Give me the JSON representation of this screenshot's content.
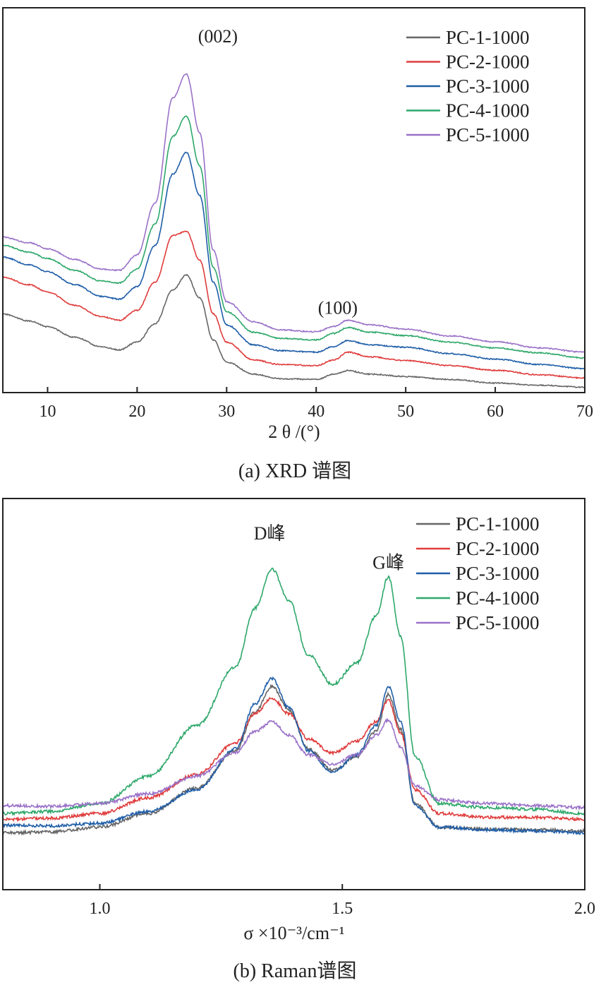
{
  "chart_data": [
    {
      "type": "line",
      "xlabel": "2 θ /(°)",
      "caption": "(a) XRD 谱图",
      "xlim": [
        5,
        70
      ],
      "ylim": [
        0,
        100
      ],
      "xticks": [
        10,
        20,
        30,
        40,
        50,
        60,
        70
      ],
      "yticks": [],
      "legend_position": "top-right",
      "grid": false,
      "annotations": [
        {
          "text": "(002)",
          "x": 26.8,
          "y": 91
        },
        {
          "text": "(100)",
          "x": 40.2,
          "y": 20.5
        }
      ],
      "series": [
        {
          "name": "PC-1-1000",
          "color": "#666666",
          "x": [
            5,
            8,
            10,
            13,
            16,
            18,
            20,
            22,
            24,
            25.5,
            27,
            28.5,
            30,
            33,
            36,
            40,
            42,
            43.5,
            46,
            50,
            55,
            60,
            65,
            70
          ],
          "y": [
            20.4,
            18.6,
            17.1,
            14.4,
            11.9,
            11.1,
            13.1,
            17.9,
            26.7,
            30.6,
            24.6,
            13.7,
            7.9,
            4.8,
            3.6,
            3.4,
            4.8,
            5.7,
            4.8,
            4.2,
            3.4,
            2.5,
            1.9,
            1.4
          ]
        },
        {
          "name": "PC-2-1000",
          "color": "#e03c3c",
          "x": [
            5,
            8,
            10,
            13,
            16,
            18,
            20,
            22,
            24,
            25.5,
            27,
            28.5,
            30,
            33,
            36,
            40,
            42,
            43.5,
            46,
            50,
            55,
            60,
            65,
            70
          ],
          "y": [
            30.0,
            28.0,
            26.1,
            22.7,
            19.8,
            18.8,
            21.4,
            28.7,
            40.8,
            41.9,
            34.4,
            20.5,
            13.1,
            8.5,
            7.3,
            7.0,
            8.5,
            10.5,
            9.3,
            8.3,
            7.0,
            5.8,
            4.6,
            3.8
          ]
        },
        {
          "name": "PC-3-1000",
          "color": "#1f5ea8",
          "x": [
            5,
            8,
            10,
            13,
            16,
            18,
            20,
            22,
            24,
            25.5,
            27,
            28.5,
            30,
            33,
            36,
            40,
            42,
            43.5,
            46,
            50,
            55,
            60,
            65,
            70
          ],
          "y": [
            35.2,
            33.2,
            31.4,
            28.1,
            25.0,
            24.3,
            27.5,
            38.2,
            56.8,
            62.4,
            51.2,
            28.7,
            17.6,
            12.4,
            10.9,
            10.5,
            12.0,
            13.5,
            12.4,
            11.8,
            10.1,
            8.7,
            7.3,
            6.2
          ]
        },
        {
          "name": "PC-4-1000",
          "color": "#2ea86a",
          "x": [
            5,
            8,
            10,
            13,
            16,
            18,
            20,
            22,
            24,
            25.5,
            27,
            28.5,
            30,
            33,
            36,
            40,
            42,
            43.5,
            46,
            50,
            55,
            60,
            65,
            70
          ],
          "y": [
            38.3,
            36.5,
            34.8,
            31.8,
            29.0,
            28.5,
            32.1,
            43.8,
            66.6,
            71.9,
            58.9,
            32.5,
            21.0,
            15.7,
            14.1,
            13.7,
            15.4,
            16.9,
            15.7,
            14.8,
            13.1,
            11.6,
            10.3,
            9.0
          ]
        },
        {
          "name": "PC-5-1000",
          "color": "#9a72c8",
          "x": [
            5,
            8,
            10,
            13,
            16,
            18,
            20,
            22,
            24,
            25.5,
            27,
            28.5,
            30,
            33,
            36,
            40,
            42,
            43.5,
            46,
            50,
            55,
            60,
            65,
            70
          ],
          "y": [
            40.4,
            38.9,
            37.4,
            34.6,
            32.1,
            31.8,
            35.8,
            49.2,
            76.6,
            82.8,
            67.5,
            37.0,
            23.6,
            18.4,
            16.3,
            15.8,
            17.2,
            18.8,
            17.6,
            16.5,
            14.7,
            13.2,
            11.6,
            10.5
          ]
        }
      ]
    },
    {
      "type": "line",
      "xlabel": "σ ×10⁻³/cm⁻¹",
      "caption": "(b) Raman谱图",
      "xlim": [
        0.8,
        2.0
      ],
      "ylim": [
        0,
        100
      ],
      "xticks": [
        1.0,
        1.5,
        2.0
      ],
      "yticks": [],
      "legend_position": "top-right",
      "grid": false,
      "annotations": [
        {
          "text": "D峰",
          "x": 1.35,
          "y": 89.5
        },
        {
          "text": "G峰",
          "x": 1.595,
          "y": 82
        }
      ],
      "series": [
        {
          "name": "PC-1-1000",
          "color": "#666666",
          "x": [
            0.8,
            0.9,
            1.0,
            1.1,
            1.2,
            1.28,
            1.32,
            1.355,
            1.39,
            1.43,
            1.48,
            1.53,
            1.57,
            1.595,
            1.62,
            1.65,
            1.7,
            1.8,
            1.9,
            2.0
          ],
          "y": [
            14.5,
            14.8,
            16.0,
            19.5,
            26.0,
            35.5,
            45.5,
            52.0,
            46.0,
            36.0,
            30.5,
            34.0,
            40.5,
            50.0,
            41.0,
            22.0,
            16.0,
            15.5,
            15.3,
            15.0
          ]
        },
        {
          "name": "PC-2-1000",
          "color": "#e03c3c",
          "x": [
            0.8,
            0.9,
            1.0,
            1.1,
            1.2,
            1.28,
            1.32,
            1.355,
            1.39,
            1.43,
            1.48,
            1.53,
            1.57,
            1.595,
            1.62,
            1.65,
            1.7,
            1.8,
            1.9,
            2.0
          ],
          "y": [
            18.0,
            18.3,
            19.5,
            23.5,
            29.5,
            37.5,
            45.0,
            49.0,
            45.0,
            38.5,
            35.0,
            38.0,
            43.0,
            48.5,
            40.0,
            25.5,
            19.5,
            18.5,
            18.5,
            18.0
          ]
        },
        {
          "name": "PC-3-1000",
          "color": "#1f5ea8",
          "x": [
            0.8,
            0.9,
            1.0,
            1.1,
            1.2,
            1.28,
            1.32,
            1.355,
            1.39,
            1.43,
            1.48,
            1.53,
            1.57,
            1.595,
            1.62,
            1.65,
            1.7,
            1.8,
            1.9,
            2.0
          ],
          "y": [
            16.5,
            16.3,
            17.0,
            20.0,
            25.5,
            36.0,
            47.5,
            54.0,
            46.5,
            35.5,
            30.0,
            34.5,
            42.0,
            52.0,
            43.0,
            21.5,
            16.0,
            15.3,
            15.0,
            14.5
          ]
        },
        {
          "name": "PC-4-1000",
          "color": "#2ea86a",
          "x": [
            0.8,
            0.9,
            1.0,
            1.1,
            1.2,
            1.28,
            1.32,
            1.355,
            1.39,
            1.43,
            1.48,
            1.53,
            1.57,
            1.595,
            1.62,
            1.65,
            1.7,
            1.8,
            1.9,
            2.0
          ],
          "y": [
            19.5,
            20.0,
            22.0,
            29.0,
            42.0,
            57.0,
            72.0,
            82.0,
            74.0,
            60.0,
            52.5,
            58.0,
            70.0,
            80.0,
            65.0,
            34.0,
            22.0,
            21.0,
            20.5,
            19.5
          ]
        },
        {
          "name": "PC-5-1000",
          "color": "#9a72c8",
          "x": [
            0.8,
            0.9,
            1.0,
            1.1,
            1.2,
            1.28,
            1.32,
            1.355,
            1.39,
            1.43,
            1.48,
            1.53,
            1.57,
            1.595,
            1.62,
            1.65,
            1.7,
            1.8,
            1.9,
            2.0
          ],
          "y": [
            21.5,
            21.3,
            22.0,
            24.5,
            29.0,
            35.0,
            40.5,
            43.0,
            39.5,
            34.5,
            32.0,
            34.5,
            39.5,
            43.5,
            36.5,
            26.5,
            23.0,
            22.0,
            21.5,
            21.0
          ]
        }
      ]
    }
  ]
}
